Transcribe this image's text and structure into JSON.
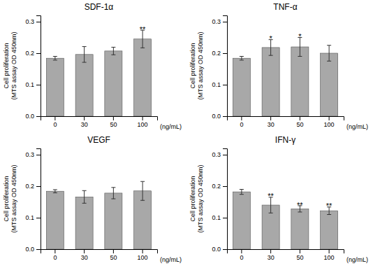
{
  "chart_data": [
    {
      "type": "bar",
      "title": "SDF-1α",
      "categories": [
        "0",
        "30",
        "50",
        "100"
      ],
      "values": [
        0.184,
        0.196,
        0.207,
        0.245
      ],
      "errors": [
        0.006,
        0.025,
        0.012,
        0.028
      ],
      "annotations": [
        {
          "text": "**",
          "x": "100",
          "y": 0.276
        }
      ],
      "color": "#a8a8a8",
      "xlabel": "(ng/mL)",
      "ylabel": "Cell proliferation\n(MTS assay OD 450nm)",
      "ylim": [
        0.0,
        0.32
      ],
      "yticks": [
        {
          "value": 0.0,
          "label": "0.0"
        },
        0.1,
        0.2,
        0.3
      ]
    },
    {
      "type": "bar",
      "title": "TNF-α",
      "categories": [
        "0",
        "30",
        "50",
        "100"
      ],
      "values": [
        0.184,
        0.218,
        0.22,
        0.2
      ],
      "errors": [
        0.006,
        0.025,
        0.03,
        0.025
      ],
      "annotations": [
        {
          "text": "*",
          "x": "30",
          "y": 0.246
        },
        {
          "text": "*",
          "x": "50",
          "y": 0.253
        }
      ],
      "color": "#a8a8a8",
      "xlabel": "(ng/mL)",
      "ylabel": "Cell proliferation\n(MTS assay OD 450nm)",
      "ylim": [
        0.0,
        0.32
      ],
      "yticks": [
        {
          "value": 0.0,
          "label": "0.0"
        },
        0.1,
        0.2,
        0.3
      ]
    },
    {
      "type": "bar",
      "title": "VEGF",
      "categories": [
        "0",
        "30",
        "50",
        "100"
      ],
      "values": [
        0.184,
        0.166,
        0.178,
        0.185
      ],
      "errors": [
        0.005,
        0.02,
        0.018,
        0.03
      ],
      "color": "#a8a8a8",
      "xlabel": "(ng/mL)",
      "ylabel": "Cell proliferation\n(MTS assay OD 450nm)",
      "ylim": [
        0.0,
        0.32
      ],
      "yticks": [
        {
          "value": 0.0,
          "label": "0.0"
        },
        0.1,
        0.2,
        0.3
      ]
    },
    {
      "type": "bar",
      "title": "IFN-γ",
      "categories": [
        "0",
        "30",
        "50",
        "100"
      ],
      "values": [
        0.182,
        0.14,
        0.128,
        0.122
      ],
      "errors": [
        0.008,
        0.025,
        0.01,
        0.012
      ],
      "annotations": [
        {
          "text": "**",
          "x": "30",
          "y": 0.168
        },
        {
          "text": "**",
          "x": "50",
          "y": 0.141
        },
        {
          "text": "**",
          "x": "100",
          "y": 0.137
        }
      ],
      "color": "#a8a8a8",
      "xlabel": "(ng/mL)",
      "ylabel": "Cell proliferation\n(MTS assay OD 450nm)",
      "ylim": [
        0.0,
        0.32
      ],
      "yticks": [
        {
          "value": 0.0,
          "label": "0.0"
        },
        0.1,
        0.2,
        0.3
      ]
    }
  ]
}
